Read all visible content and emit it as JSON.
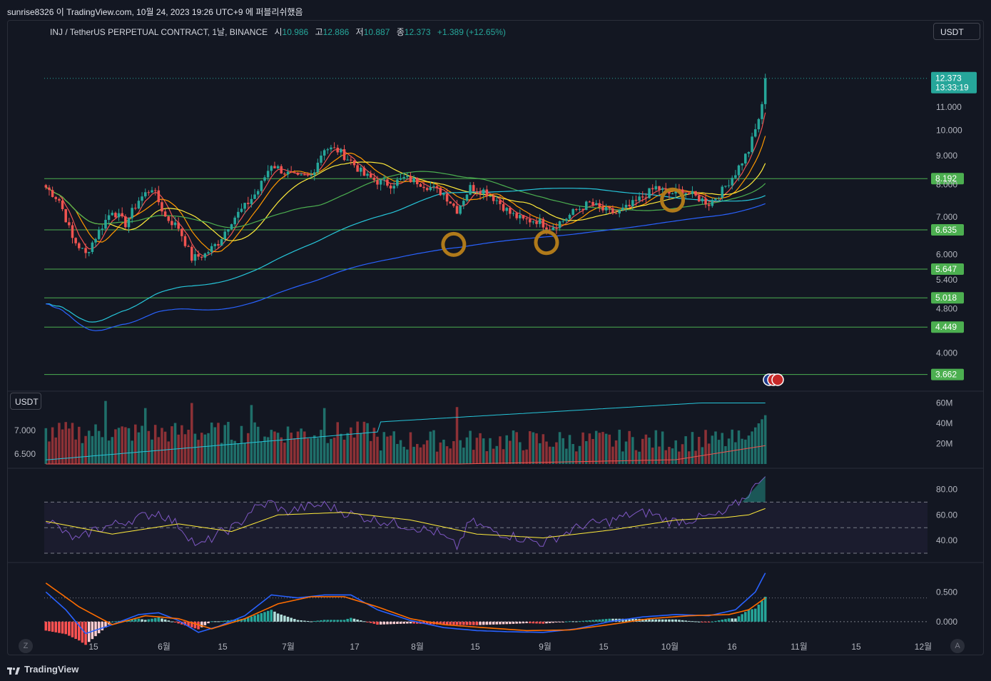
{
  "header": {
    "publish_line": "sunrise8326 이 TradingView.com, 10월 24, 2023 19:26 UTC+9 에 퍼블리쉬했음"
  },
  "legend": {
    "symbol": "INJ / TetherUS PERPETUAL CONTRACT, 1날, BINANCE",
    "open_label": "시",
    "open": "10.986",
    "high_label": "고",
    "high": "12.886",
    "low_label": "저",
    "low": "10.887",
    "close_label": "종",
    "close": "12.373",
    "change": "+1.389 (+12.65%)"
  },
  "controls": {
    "currency_button": "USDT",
    "volume_currency": "USDT",
    "left_scale_button": "Z",
    "right_scale_button": "A"
  },
  "branding": {
    "footer_logo_text": "TradingView"
  },
  "colors": {
    "background": "#131722",
    "up": "#26a69a",
    "down": "#ef5350",
    "support_line": "#4caf50",
    "price_tag": "#26a69a"
  },
  "chart_data": [
    {
      "type": "candlestick",
      "title": "INJ / TetherUS PERPETUAL CONTRACT, 1날, BINANCE",
      "x_tick_labels": [
        "15",
        "6월",
        "15",
        "7월",
        "17",
        "8월",
        "15",
        "9월",
        "15",
        "10월",
        "16",
        "11월",
        "15",
        "12월"
      ],
      "y_tick_labels": [
        "11.000",
        "10.000",
        "9.000",
        "8.000",
        "7.000",
        "6.000",
        "5.400",
        "4.800",
        "4.000"
      ],
      "y_ticks": [
        11.0,
        10.0,
        9.0,
        8.0,
        7.0,
        6.0,
        5.4,
        4.8,
        4.0
      ],
      "scale": "log",
      "ylim": [
        3.5,
        13.5
      ],
      "current_price_tag": {
        "price": "12.373",
        "countdown": "13:33:19"
      },
      "horizontal_levels": [
        {
          "value": 8.192,
          "label": "8.192"
        },
        {
          "value": 6.635,
          "label": "6.635"
        },
        {
          "value": 5.647,
          "label": "5.647"
        },
        {
          "value": 5.018,
          "label": "5.018"
        },
        {
          "value": 4.449,
          "label": "4.449"
        },
        {
          "value": 3.662,
          "label": "3.662"
        }
      ],
      "close_keypoints": [
        [
          0,
          7.9
        ],
        [
          4,
          7.5
        ],
        [
          8,
          6.4
        ],
        [
          12,
          6.0
        ],
        [
          16,
          6.6
        ],
        [
          20,
          7.2
        ],
        [
          24,
          6.8
        ],
        [
          28,
          7.5
        ],
        [
          32,
          7.9
        ],
        [
          36,
          7.0
        ],
        [
          40,
          6.7
        ],
        [
          44,
          5.9
        ],
        [
          48,
          6.0
        ],
        [
          52,
          6.3
        ],
        [
          56,
          6.9
        ],
        [
          60,
          7.3
        ],
        [
          64,
          7.8
        ],
        [
          68,
          8.7
        ],
        [
          72,
          8.4
        ],
        [
          76,
          8.2
        ],
        [
          80,
          8.3
        ],
        [
          84,
          9.3
        ],
        [
          88,
          9.2
        ],
        [
          92,
          8.8
        ],
        [
          96,
          8.3
        ],
        [
          100,
          8.1
        ],
        [
          104,
          8.0
        ],
        [
          108,
          8.2
        ],
        [
          112,
          8.1
        ],
        [
          116,
          7.9
        ],
        [
          120,
          7.7
        ],
        [
          124,
          7.2
        ],
        [
          128,
          7.9
        ],
        [
          132,
          7.8
        ],
        [
          136,
          7.5
        ],
        [
          140,
          7.1
        ],
        [
          144,
          6.9
        ],
        [
          148,
          6.9
        ],
        [
          152,
          6.7
        ],
        [
          156,
          6.9
        ],
        [
          160,
          7.2
        ],
        [
          164,
          7.4
        ],
        [
          168,
          7.2
        ],
        [
          172,
          7.1
        ],
        [
          176,
          7.3
        ],
        [
          180,
          7.6
        ],
        [
          184,
          7.9
        ],
        [
          188,
          7.7
        ],
        [
          192,
          7.8
        ],
        [
          196,
          7.6
        ],
        [
          200,
          7.4
        ],
        [
          204,
          7.8
        ],
        [
          208,
          8.4
        ],
        [
          212,
          9.2
        ],
        [
          214,
          10.0
        ],
        [
          216,
          11.0
        ],
        [
          217,
          12.373
        ]
      ],
      "moving_averages": [
        {
          "color": "#ef5350",
          "period": 5
        },
        {
          "color": "#ff9800",
          "period": 10
        },
        {
          "color": "#ffeb3b",
          "period": 20
        },
        {
          "color": "#4caf50",
          "period": 50
        },
        {
          "color": "#26c6da",
          "period": 100
        },
        {
          "color": "#2962ff",
          "period": 200
        }
      ],
      "highlight_circles": [
        {
          "day": 123,
          "value": 6.25
        },
        {
          "day": 151,
          "value": 6.3
        },
        {
          "day": 189,
          "value": 7.5
        }
      ]
    },
    {
      "type": "bar",
      "title": "",
      "y_tick_labels": [
        "60M",
        "40M",
        "20M"
      ],
      "y_ticks": [
        60,
        40,
        20
      ],
      "left_tick_labels": [
        "7.000",
        "6.500"
      ],
      "ylim": [
        0,
        66
      ],
      "unit": "M",
      "spikes": [
        {
          "day": 18,
          "value": 62
        },
        {
          "day": 30,
          "value": 55
        },
        {
          "day": 44,
          "value": 60
        },
        {
          "day": 62,
          "value": 58
        },
        {
          "day": 84,
          "value": 55
        },
        {
          "day": 124,
          "value": 56
        },
        {
          "day": 216,
          "value": 45
        }
      ]
    },
    {
      "type": "line",
      "title": "",
      "y_tick_labels": [
        "80.00",
        "60.00",
        "40.00"
      ],
      "y_ticks": [
        80,
        60,
        40
      ],
      "ylim": [
        25,
        92
      ],
      "bands": [
        70,
        50,
        30
      ],
      "rsi_keypoints": [
        [
          0,
          58
        ],
        [
          6,
          45
        ],
        [
          10,
          40
        ],
        [
          14,
          48
        ],
        [
          20,
          52
        ],
        [
          28,
          58
        ],
        [
          34,
          62
        ],
        [
          40,
          52
        ],
        [
          46,
          35
        ],
        [
          52,
          45
        ],
        [
          58,
          52
        ],
        [
          62,
          64
        ],
        [
          68,
          70
        ],
        [
          72,
          62
        ],
        [
          78,
          66
        ],
        [
          84,
          68
        ],
        [
          90,
          62
        ],
        [
          96,
          58
        ],
        [
          104,
          54
        ],
        [
          112,
          50
        ],
        [
          118,
          46
        ],
        [
          124,
          35
        ],
        [
          128,
          55
        ],
        [
          134,
          48
        ],
        [
          140,
          44
        ],
        [
          146,
          40
        ],
        [
          150,
          38
        ],
        [
          156,
          45
        ],
        [
          162,
          52
        ],
        [
          170,
          55
        ],
        [
          176,
          60
        ],
        [
          182,
          62
        ],
        [
          188,
          55
        ],
        [
          194,
          56
        ],
        [
          198,
          58
        ],
        [
          204,
          60
        ],
        [
          210,
          72
        ],
        [
          214,
          82
        ],
        [
          217,
          90
        ]
      ],
      "ma_keypoints": [
        [
          0,
          55
        ],
        [
          20,
          45
        ],
        [
          40,
          53
        ],
        [
          56,
          47
        ],
        [
          70,
          60
        ],
        [
          90,
          62
        ],
        [
          110,
          56
        ],
        [
          130,
          45
        ],
        [
          150,
          42
        ],
        [
          170,
          48
        ],
        [
          190,
          56
        ],
        [
          205,
          58
        ],
        [
          212,
          60
        ],
        [
          217,
          65
        ]
      ]
    },
    {
      "type": "line",
      "title": "",
      "y_tick_labels": [
        "0.500",
        "0.000"
      ],
      "y_ticks": [
        0.5,
        0.0
      ],
      "ylim": [
        -0.35,
        0.9
      ],
      "macd_keypoints": [
        [
          0,
          0.5
        ],
        [
          6,
          0.2
        ],
        [
          12,
          -0.2
        ],
        [
          20,
          -0.05
        ],
        [
          28,
          0.12
        ],
        [
          34,
          0.15
        ],
        [
          40,
          0.02
        ],
        [
          46,
          -0.18
        ],
        [
          52,
          -0.08
        ],
        [
          60,
          0.1
        ],
        [
          68,
          0.45
        ],
        [
          76,
          0.4
        ],
        [
          84,
          0.45
        ],
        [
          92,
          0.45
        ],
        [
          100,
          0.2
        ],
        [
          110,
          0.02
        ],
        [
          120,
          -0.1
        ],
        [
          130,
          -0.15
        ],
        [
          140,
          -0.17
        ],
        [
          150,
          -0.18
        ],
        [
          160,
          -0.12
        ],
        [
          170,
          0.0
        ],
        [
          180,
          0.08
        ],
        [
          190,
          0.12
        ],
        [
          200,
          0.1
        ],
        [
          208,
          0.2
        ],
        [
          214,
          0.5
        ],
        [
          217,
          0.82
        ]
      ],
      "signal_keypoints": [
        [
          0,
          0.65
        ],
        [
          10,
          0.25
        ],
        [
          20,
          -0.05
        ],
        [
          30,
          0.1
        ],
        [
          40,
          0.05
        ],
        [
          50,
          -0.12
        ],
        [
          60,
          0.05
        ],
        [
          70,
          0.3
        ],
        [
          80,
          0.42
        ],
        [
          90,
          0.42
        ],
        [
          100,
          0.25
        ],
        [
          110,
          0.05
        ],
        [
          120,
          -0.05
        ],
        [
          132,
          -0.1
        ],
        [
          145,
          -0.15
        ],
        [
          158,
          -0.14
        ],
        [
          170,
          -0.05
        ],
        [
          182,
          0.05
        ],
        [
          194,
          0.1
        ],
        [
          206,
          0.12
        ],
        [
          212,
          0.2
        ],
        [
          217,
          0.4
        ]
      ]
    }
  ]
}
